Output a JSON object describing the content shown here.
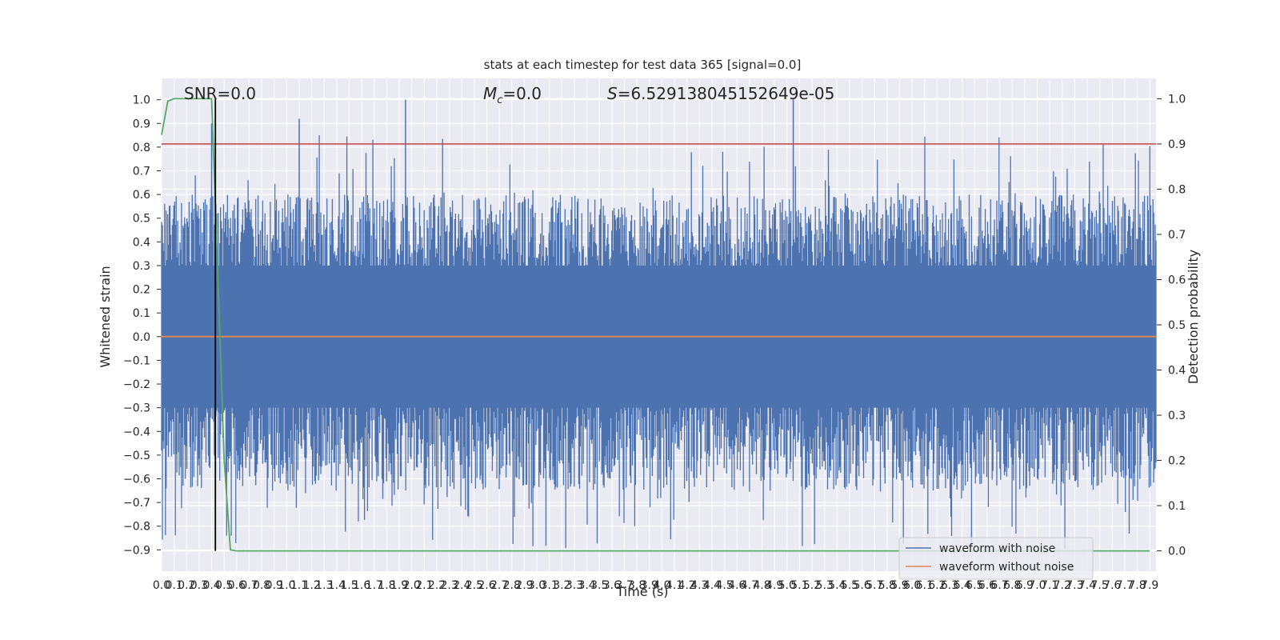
{
  "chart_data": {
    "type": "line",
    "title": "stats at each timestep for test data 365 [signal=0.0]",
    "xlabel": "Time (s)",
    "ylabel_left": "Whitened strain",
    "ylabel_right": "Detection probability",
    "xlim": [
      0,
      7.95
    ],
    "ylim_left": [
      -0.99,
      1.09
    ],
    "ylim_right": [
      -0.045,
      1.045
    ],
    "x_ticks": [
      "0.0",
      "0.1",
      "0.2",
      "0.3",
      "0.4",
      "0.5",
      "0.6",
      "0.7",
      "0.8",
      "0.9",
      "1.0",
      "1.1",
      "1.2",
      "1.3",
      "1.4",
      "1.5",
      "1.6",
      "1.7",
      "1.8",
      "1.9",
      "2.0",
      "2.1",
      "2.2",
      "2.3",
      "2.4",
      "2.5",
      "2.6",
      "2.7",
      "2.8",
      "2.9",
      "3.0",
      "3.1",
      "3.2",
      "3.3",
      "3.4",
      "3.5",
      "3.6",
      "3.7",
      "3.8",
      "3.9",
      "4.0",
      "4.1",
      "4.2",
      "4.3",
      "4.4",
      "4.5",
      "4.6",
      "4.7",
      "4.8",
      "4.9",
      "5.0",
      "5.1",
      "5.2",
      "5.3",
      "5.4",
      "5.5",
      "5.6",
      "5.7",
      "5.8",
      "5.9",
      "6.0",
      "6.1",
      "6.2",
      "6.3",
      "6.4",
      "6.5",
      "6.6",
      "6.7",
      "6.8",
      "6.9",
      "7.0",
      "7.1",
      "7.2",
      "7.3",
      "7.4",
      "7.5",
      "7.6",
      "7.7",
      "7.8",
      "7.9"
    ],
    "y_ticks_left": [
      "-0.9",
      "-0.8",
      "-0.7",
      "-0.6",
      "-0.5",
      "-0.4",
      "-0.3",
      "-0.2",
      "-0.1",
      "0.0",
      "0.1",
      "0.2",
      "0.3",
      "0.4",
      "0.5",
      "0.6",
      "0.7",
      "0.8",
      "0.9",
      "1.0"
    ],
    "y_ticks_right": [
      "0.0",
      "0.1",
      "0.2",
      "0.3",
      "0.4",
      "0.5",
      "0.6",
      "0.7",
      "0.8",
      "0.9",
      "1.0"
    ],
    "annotations": {
      "snr": "SNR=0.0",
      "mc_symbol": "M",
      "mc_sub": "c",
      "mc_value": "=0.0",
      "s_symbol": "S",
      "s_value": "=6.529138045152649e-05"
    },
    "series": [
      {
        "name": "waveform with noise",
        "color": "#4c72b0",
        "axis": "left",
        "description_values": {
          "approx_envelope_upper": [
            0.3,
            1.0
          ],
          "approx_envelope_lower": [
            -0.9,
            -0.3
          ]
        }
      },
      {
        "name": "waveform without noise",
        "color": "#dd8452",
        "axis": "left",
        "values_constant": 0.0
      },
      {
        "name": "detection probability",
        "color": "#55a868",
        "axis": "right",
        "x": [
          0.0,
          0.05,
          0.1,
          0.15,
          0.2,
          0.3,
          0.35,
          0.4,
          0.45,
          0.5,
          0.55,
          0.6,
          7.9
        ],
        "y": [
          0.92,
          0.995,
          1.0,
          1.0,
          1.0,
          1.0,
          1.0,
          1.0,
          0.6,
          0.2,
          0.002,
          0.0,
          0.0
        ]
      },
      {
        "name": "threshold",
        "color": "#c44e52",
        "axis": "right",
        "values_constant": 0.9
      },
      {
        "name": "marker",
        "color": "#000000",
        "axis": "right",
        "x_constant": 0.43,
        "y_range": [
          0.0,
          1.0
        ]
      }
    ],
    "legend": {
      "placement": "lower-right",
      "entries": [
        {
          "label": "waveform with noise",
          "color": "#4c72b0"
        },
        {
          "label": "waveform without noise",
          "color": "#dd8452"
        }
      ]
    },
    "grid": true,
    "background": "#eaeaf2"
  }
}
